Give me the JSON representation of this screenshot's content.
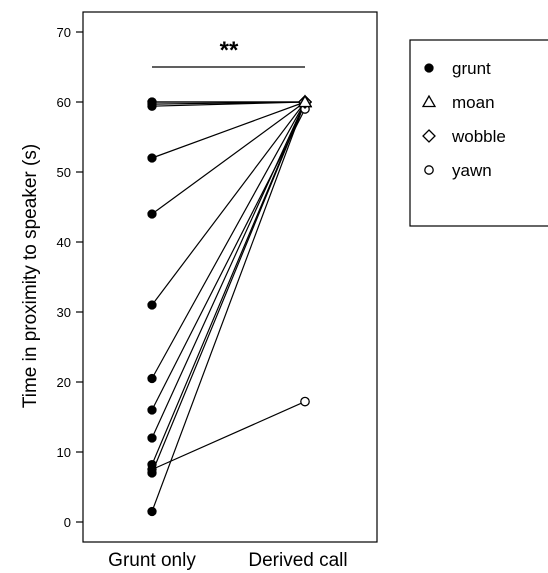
{
  "chart_data": {
    "type": "line",
    "title": "",
    "xlabel": "",
    "ylabel": "Time in proximity to speaker (s)",
    "ylim": [
      -2,
      70
    ],
    "yticks": [
      0,
      10,
      20,
      30,
      40,
      50,
      60,
      70
    ],
    "ytick_labels": [
      "0",
      "10",
      "20",
      "30",
      "40",
      "50",
      "60",
      "70"
    ],
    "grid": false,
    "categories": [
      "Grunt only",
      "Derived call"
    ],
    "significance": "**",
    "legend": {
      "placement": "right",
      "entries": [
        {
          "label": "grunt",
          "marker": "filled-circle"
        },
        {
          "label": "moan",
          "marker": "open-triangle"
        },
        {
          "label": "wobble",
          "marker": "open-diamond"
        },
        {
          "label": "yawn",
          "marker": "open-circle"
        }
      ]
    },
    "pairs": [
      {
        "grunt_only": 60,
        "derived": 60,
        "derived_call": "moan"
      },
      {
        "grunt_only": 60,
        "derived": 60,
        "derived_call": "wobble"
      },
      {
        "grunt_only": 59.7,
        "derived": 60,
        "derived_call": "wobble"
      },
      {
        "grunt_only": 59.4,
        "derived": 60,
        "derived_call": "moan"
      },
      {
        "grunt_only": 52,
        "derived": 60,
        "derived_call": "wobble"
      },
      {
        "grunt_only": 44,
        "derived": 60,
        "derived_call": "moan"
      },
      {
        "grunt_only": 31,
        "derived": 60,
        "derived_call": "wobble"
      },
      {
        "grunt_only": 20.5,
        "derived": 60,
        "derived_call": "moan"
      },
      {
        "grunt_only": 16,
        "derived": 59,
        "derived_call": "yawn"
      },
      {
        "grunt_only": 12,
        "derived": 60,
        "derived_call": "wobble"
      },
      {
        "grunt_only": 8.2,
        "derived": 60,
        "derived_call": "moan"
      },
      {
        "grunt_only": 7.5,
        "derived": 17.2,
        "derived_call": "yawn"
      },
      {
        "grunt_only": 7,
        "derived": 60,
        "derived_call": "wobble"
      },
      {
        "grunt_only": 1.5,
        "derived": 60,
        "derived_call": "moan"
      }
    ]
  }
}
